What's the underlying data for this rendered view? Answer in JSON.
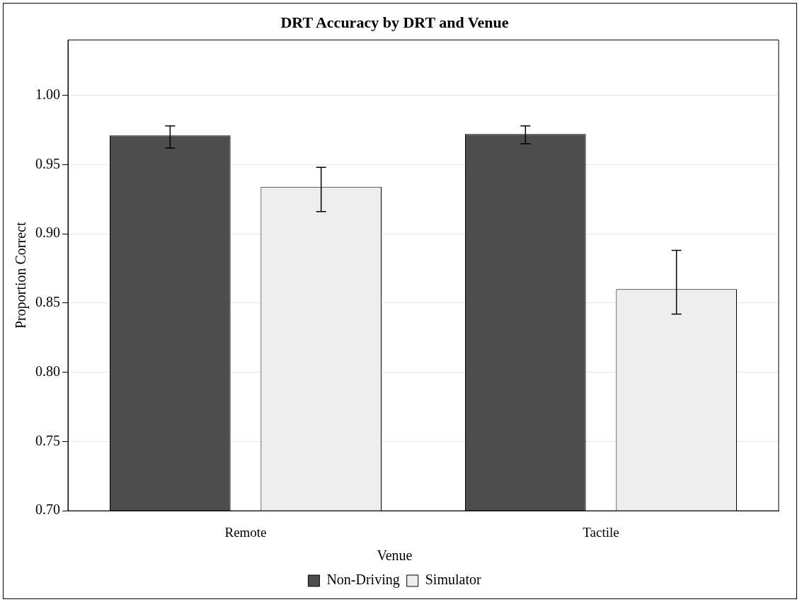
{
  "chart_data": {
    "type": "bar",
    "title": "DRT Accuracy by DRT and Venue",
    "ylabel": "Proportion Correct",
    "categories": [
      "Remote",
      "Tactile"
    ],
    "series": [
      {
        "name": "Non-Driving",
        "color": "#4d4d4d",
        "values": [
          0.971,
          0.972
        ],
        "errors": [
          [
            0.962,
            0.978
          ],
          [
            0.965,
            0.978
          ]
        ]
      },
      {
        "name": "Simulator",
        "color": "#eeeeee",
        "values": [
          0.934,
          0.86
        ],
        "errors": [
          [
            0.916,
            0.948
          ],
          [
            0.842,
            0.888
          ]
        ]
      }
    ],
    "legend_title": "Venue",
    "legend": "bottom",
    "grid": "y",
    "ylim": [
      0.7,
      1.04
    ],
    "yticks": [
      {
        "value": 0.7,
        "label": "0.70"
      },
      {
        "value": 0.75,
        "label": "0.75"
      },
      {
        "value": 0.8,
        "label": "0.80"
      },
      {
        "value": 0.85,
        "label": "0.85"
      },
      {
        "value": 0.9,
        "label": "0.90"
      },
      {
        "value": 0.95,
        "label": "0.95"
      },
      {
        "value": 1.0,
        "label": "1.00"
      }
    ]
  }
}
